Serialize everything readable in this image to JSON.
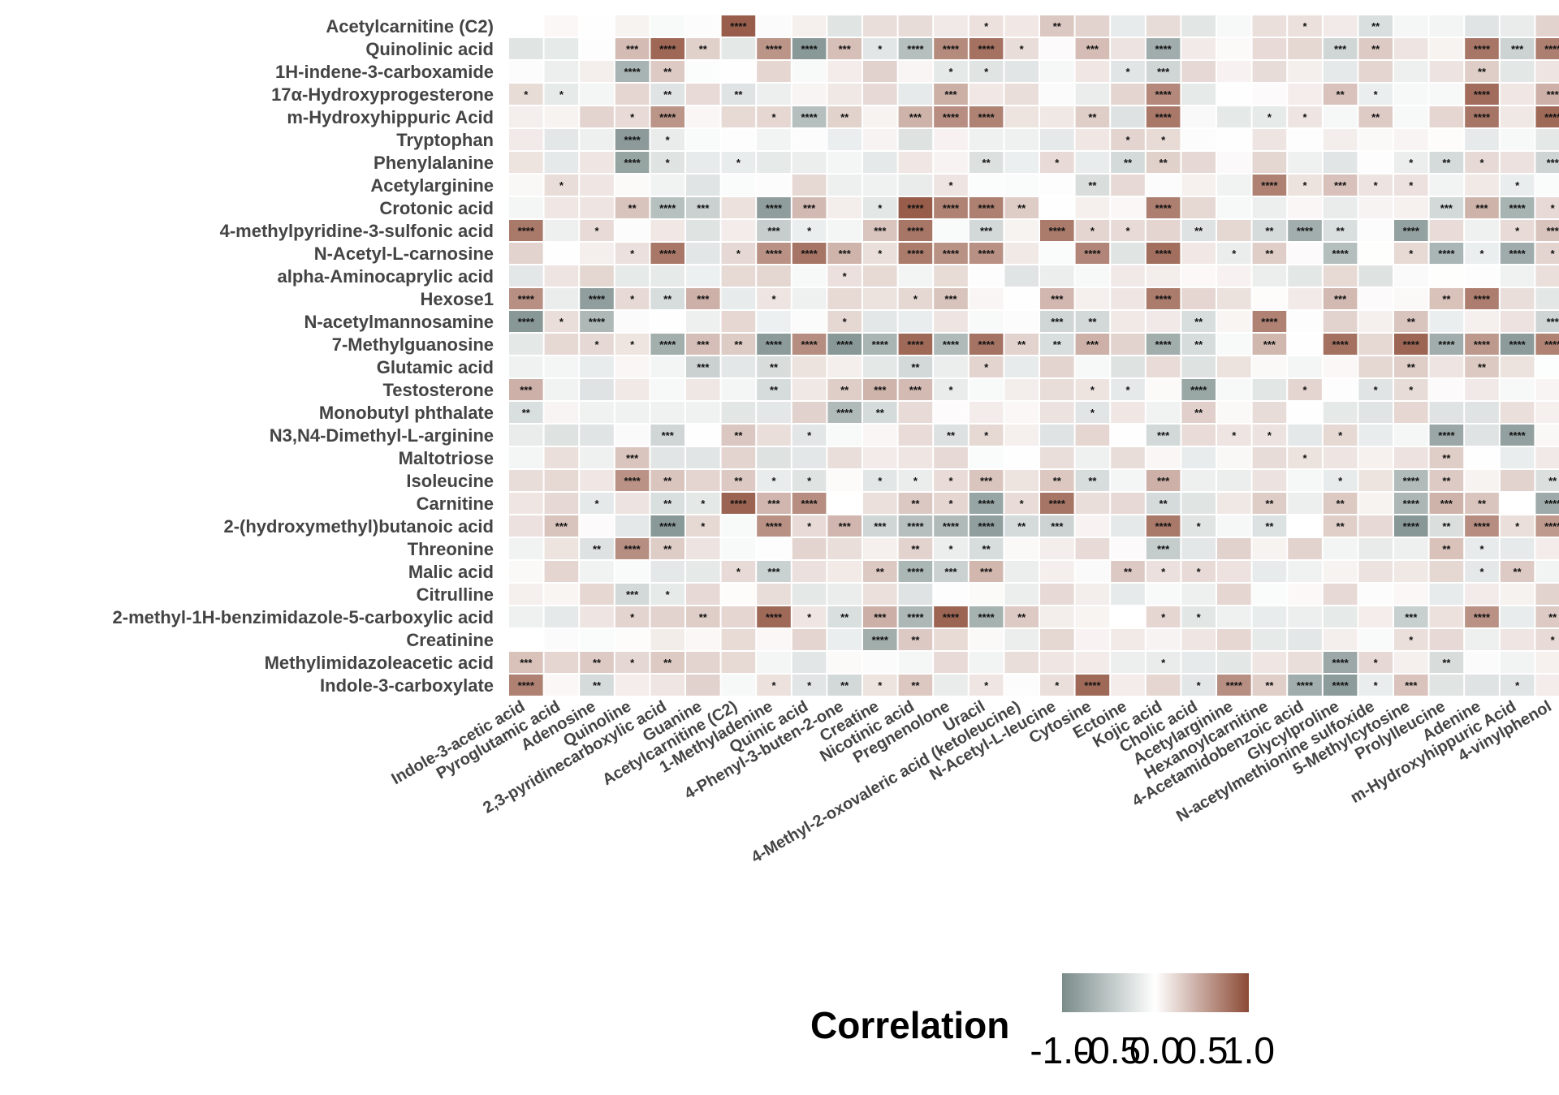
{
  "chart_data": {
    "type": "heatmap",
    "rows": [
      "Acetylcarnitine (C2)",
      "Quinolinic acid",
      "1H-indene-3-carboxamide",
      "17α-Hydroxyprogesterone",
      "m-Hydroxyhippuric Acid",
      "Tryptophan",
      "Phenylalanine",
      "Acetylarginine",
      "Crotonic acid",
      "4-methylpyridine-3-sulfonic acid",
      "N-Acetyl-L-carnosine",
      "alpha-Aminocaprylic acid",
      "Hexose1",
      "N-acetylmannosamine",
      "7-Methylguanosine",
      "Glutamic acid",
      "Testosterone",
      "Monobutyl phthalate",
      "N3,N4-Dimethyl-L-arginine",
      "Maltotriose",
      "Isoleucine",
      "Carnitine",
      "2-(hydroxymethyl)butanoic acid",
      "Threonine",
      "Malic acid",
      "Citrulline",
      "2-methyl-1H-benzimidazole-5-carboxylic acid",
      "Creatinine",
      "Methylimidazoleacetic acid",
      "Indole-3-carboxylate"
    ],
    "columns": [
      "Indole-3-acetic acid",
      "Pyroglutamic acid",
      "Adenosine",
      "Quinoline",
      "2,3-pyridinecarboxylic acid",
      "Guanine",
      "Acetylcarnitine (C2)",
      "1-Methyladenine",
      "Quinic acid",
      "4-Phenyl-3-buten-2-one",
      "Creatine",
      "Nicotinic acid",
      "Pregnenolone",
      "Uracil",
      "4-Methyl-2-oxovaleric acid (ketoleucine)",
      "N-Acetyl-L-leucine",
      "Cytosine",
      "Ectoine",
      "Kojic acid",
      "Cholic acid",
      "Acetylarginine",
      "Hexanoylcarnitine",
      "4-Acetamidobenzoic acid",
      "Glycylproline",
      "N-acetylmethionine sulfoxide",
      "5-Methylcytosine",
      "Prolylleucine",
      "Adenine",
      "m-Hydroxyhippuric Acid",
      "4-vinylphenol"
    ],
    "significance": [
      [
        "",
        "",
        "",
        "",
        "",
        "",
        "****",
        "",
        "",
        "",
        "",
        "",
        "",
        "*",
        "",
        "**",
        "",
        "",
        "",
        "",
        "",
        "",
        "*",
        "",
        "**",
        "",
        "",
        "",
        "",
        ""
      ],
      [
        "",
        "",
        "",
        "***",
        "****",
        "**",
        "",
        "****",
        "****",
        "***",
        "*",
        "****",
        "****",
        "****",
        "*",
        "",
        "***",
        "",
        "****",
        "",
        "",
        "",
        "",
        "***",
        "**",
        "",
        "",
        "****",
        "***",
        "****"
      ],
      [
        "",
        "",
        "",
        "****",
        "**",
        "",
        "",
        "",
        "",
        "",
        "",
        "",
        "*",
        "*",
        "",
        "",
        "",
        "*",
        "***",
        "",
        "",
        "",
        "",
        "",
        "",
        "",
        "",
        "**",
        "",
        ""
      ],
      [
        "*",
        "*",
        "",
        "",
        "**",
        "",
        "**",
        "",
        "",
        "",
        "",
        "",
        "***",
        "",
        "",
        "",
        "",
        "",
        "****",
        "",
        "",
        "",
        "",
        "**",
        "*",
        "",
        "",
        "****",
        "",
        "***"
      ],
      [
        "",
        "",
        "",
        "*",
        "****",
        "",
        "",
        "*",
        "****",
        "**",
        "",
        "***",
        "****",
        "****",
        "",
        "",
        "**",
        "",
        "****",
        "",
        "",
        "*",
        "*",
        "",
        "**",
        "",
        "",
        "****",
        "",
        "****"
      ],
      [
        "",
        "",
        "",
        "****",
        "*",
        "",
        "",
        "",
        "",
        "",
        "",
        "",
        "",
        "",
        "",
        "",
        "",
        "*",
        "*",
        "",
        "",
        "",
        "",
        "",
        "",
        "",
        "",
        "",
        "",
        ""
      ],
      [
        "",
        "",
        "",
        "****",
        "*",
        "",
        "*",
        "",
        "",
        "",
        "",
        "",
        "",
        "**",
        "",
        "*",
        "",
        "**",
        "**",
        "",
        "",
        "",
        "",
        "",
        "",
        "*",
        "**",
        "*",
        "",
        "***"
      ],
      [
        "",
        "*",
        "",
        "",
        "",
        "",
        "",
        "",
        "",
        "",
        "",
        "",
        "*",
        "",
        "",
        "",
        "**",
        "",
        "",
        "",
        "",
        "****",
        "*",
        "***",
        "*",
        "*",
        "",
        "",
        "*",
        ""
      ],
      [
        "",
        "",
        "",
        "**",
        "****",
        "***",
        "",
        "****",
        "***",
        "",
        "*",
        "****",
        "****",
        "****",
        "**",
        "",
        "",
        "",
        "****",
        "",
        "",
        "",
        "",
        "",
        "",
        "",
        "***",
        "***",
        "****",
        "*"
      ],
      [
        "****",
        "",
        "*",
        "",
        "",
        "",
        "",
        "***",
        "*",
        "",
        "***",
        "****",
        "",
        "***",
        "",
        "****",
        "*",
        "*",
        "",
        "**",
        "",
        "**",
        "****",
        "**",
        "",
        "****",
        "",
        "",
        "*",
        "***"
      ],
      [
        "",
        "",
        "",
        "*",
        "****",
        "",
        "*",
        "****",
        "****",
        "***",
        "*",
        "****",
        "****",
        "****",
        "",
        "",
        "****",
        "",
        "****",
        "",
        "*",
        "**",
        "",
        "****",
        "",
        "*",
        "****",
        "*",
        "****",
        "*"
      ],
      [
        "",
        "",
        "",
        "",
        "",
        "",
        "",
        "",
        "",
        "*",
        "",
        "",
        "",
        "",
        "",
        "",
        "",
        "",
        "",
        "",
        "",
        "",
        "",
        "",
        "",
        "",
        "",
        "",
        "",
        ""
      ],
      [
        "****",
        "",
        "****",
        "*",
        "**",
        "***",
        "",
        "*",
        "",
        "",
        "",
        "*",
        "***",
        "",
        "",
        "***",
        "",
        "",
        "****",
        "",
        "",
        "",
        "",
        "***",
        "",
        "",
        "**",
        "****",
        "",
        ""
      ],
      [
        "****",
        "*",
        "****",
        "",
        "",
        "",
        "",
        "",
        "",
        "*",
        "",
        "",
        "",
        "",
        "",
        "***",
        "**",
        "",
        "",
        "**",
        "",
        "****",
        "",
        "",
        "",
        "**",
        "",
        "",
        "",
        "***"
      ],
      [
        "",
        "",
        "*",
        "*",
        "****",
        "***",
        "**",
        "****",
        "****",
        "****",
        "****",
        "****",
        "****",
        "****",
        "**",
        "**",
        "***",
        "",
        "****",
        "**",
        "",
        "***",
        "",
        "****",
        "",
        "****",
        "****",
        "****",
        "****",
        "****"
      ],
      [
        "",
        "",
        "",
        "",
        "",
        "***",
        "",
        "**",
        "",
        "",
        "",
        "**",
        "",
        "*",
        "",
        "",
        "",
        "",
        "",
        "",
        "",
        "",
        "",
        "",
        "",
        "**",
        "",
        "**",
        "",
        ""
      ],
      [
        "***",
        "",
        "",
        "",
        "",
        "",
        "",
        "**",
        "",
        "**",
        "***",
        "***",
        "*",
        "",
        "",
        "",
        "*",
        "*",
        "",
        "****",
        "",
        "",
        "*",
        "",
        "*",
        "*",
        "",
        "",
        "",
        ""
      ],
      [
        "**",
        "",
        "",
        "",
        "",
        "",
        "",
        "",
        "",
        "****",
        "**",
        "",
        "",
        "",
        "",
        "",
        "*",
        "",
        "",
        "**",
        "",
        "",
        "",
        "",
        "",
        "",
        "",
        "",
        "",
        ""
      ],
      [
        "",
        "",
        "",
        "",
        "***",
        "",
        "**",
        "",
        "*",
        "",
        "",
        "",
        "**",
        "*",
        "",
        "",
        "",
        "",
        "***",
        "",
        "*",
        "*",
        "",
        "*",
        "",
        "",
        "****",
        "",
        "****",
        ""
      ],
      [
        "",
        "",
        "",
        "***",
        "",
        "",
        "",
        "",
        "",
        "",
        "",
        "",
        "",
        "",
        "",
        "",
        "",
        "",
        "",
        "",
        "",
        "",
        "*",
        "",
        "",
        "",
        "**",
        "",
        "",
        ""
      ],
      [
        "",
        "",
        "",
        "****",
        "**",
        "",
        "**",
        "*",
        "*",
        "",
        "*",
        "*",
        "*",
        "***",
        "",
        "**",
        "**",
        "",
        "***",
        "",
        "",
        "",
        "",
        "*",
        "",
        "****",
        "**",
        "",
        "",
        "**"
      ],
      [
        "",
        "",
        "*",
        "",
        "**",
        "*",
        "****",
        "***",
        "****",
        "",
        "",
        "**",
        "*",
        "****",
        "*",
        "****",
        "",
        "",
        "**",
        "",
        "",
        "**",
        "",
        "**",
        "",
        "****",
        "***",
        "**",
        "",
        "****"
      ],
      [
        "",
        "***",
        "",
        "",
        "****",
        "*",
        "",
        "****",
        "*",
        "***",
        "***",
        "****",
        "****",
        "****",
        "**",
        "***",
        "",
        "",
        "****",
        "*",
        "",
        "**",
        "",
        "**",
        "",
        "****",
        "**",
        "****",
        "*",
        "****"
      ],
      [
        "",
        "",
        "**",
        "****",
        "**",
        "",
        "",
        "",
        "",
        "",
        "",
        "**",
        "*",
        "**",
        "",
        "",
        "",
        "",
        "***",
        "",
        "",
        "",
        "",
        "",
        "",
        "",
        "**",
        "*",
        "",
        ""
      ],
      [
        "",
        "",
        "",
        "",
        "",
        "",
        "*",
        "***",
        "",
        "",
        "**",
        "****",
        "***",
        "***",
        "",
        "",
        "",
        "**",
        "*",
        "*",
        "",
        "",
        "",
        "",
        "",
        "",
        "",
        "*",
        "**",
        ""
      ],
      [
        "",
        "",
        "",
        "***",
        "*",
        "",
        "",
        "",
        "",
        "",
        "",
        "",
        "",
        "",
        "",
        "",
        "",
        "",
        "",
        "",
        "",
        "",
        "",
        "",
        "",
        "",
        "",
        "",
        "",
        ""
      ],
      [
        "",
        "",
        "",
        "*",
        "",
        "**",
        "",
        "****",
        "*",
        "**",
        "***",
        "****",
        "****",
        "****",
        "**",
        "",
        "",
        "",
        "*",
        "*",
        "",
        "",
        "",
        "",
        "",
        "***",
        "",
        "****",
        "",
        "**"
      ],
      [
        "",
        "",
        "",
        "",
        "",
        "",
        "",
        "",
        "",
        "",
        "****",
        "**",
        "",
        "",
        "",
        "",
        "",
        "",
        "",
        "",
        "",
        "",
        "",
        "",
        "",
        "*",
        "",
        "",
        "",
        "*"
      ],
      [
        "***",
        "",
        "**",
        "*",
        "**",
        "",
        "",
        "",
        "",
        "",
        "",
        "",
        "",
        "",
        "",
        "",
        "",
        "",
        "*",
        "",
        "",
        "",
        "",
        "****",
        "*",
        "",
        "**",
        "",
        "",
        ""
      ],
      [
        "****",
        "",
        "**",
        "",
        "",
        "",
        "",
        "*",
        "*",
        "**",
        "*",
        "**",
        "",
        "*",
        "",
        "*",
        "****",
        "",
        "",
        "*",
        "****",
        "**",
        "****",
        "****",
        "*",
        "***",
        "",
        "",
        "*",
        ""
      ]
    ],
    "value_range": [
      -1,
      1
    ],
    "legend": {
      "title": "Correlation",
      "ticks": [
        "-1.0",
        "-0.5",
        "0.0",
        "0.5",
        "1.0"
      ],
      "colors": {
        "low": "#7a8c8a",
        "mid": "#ffffff",
        "high": "#8b4a35"
      }
    }
  }
}
